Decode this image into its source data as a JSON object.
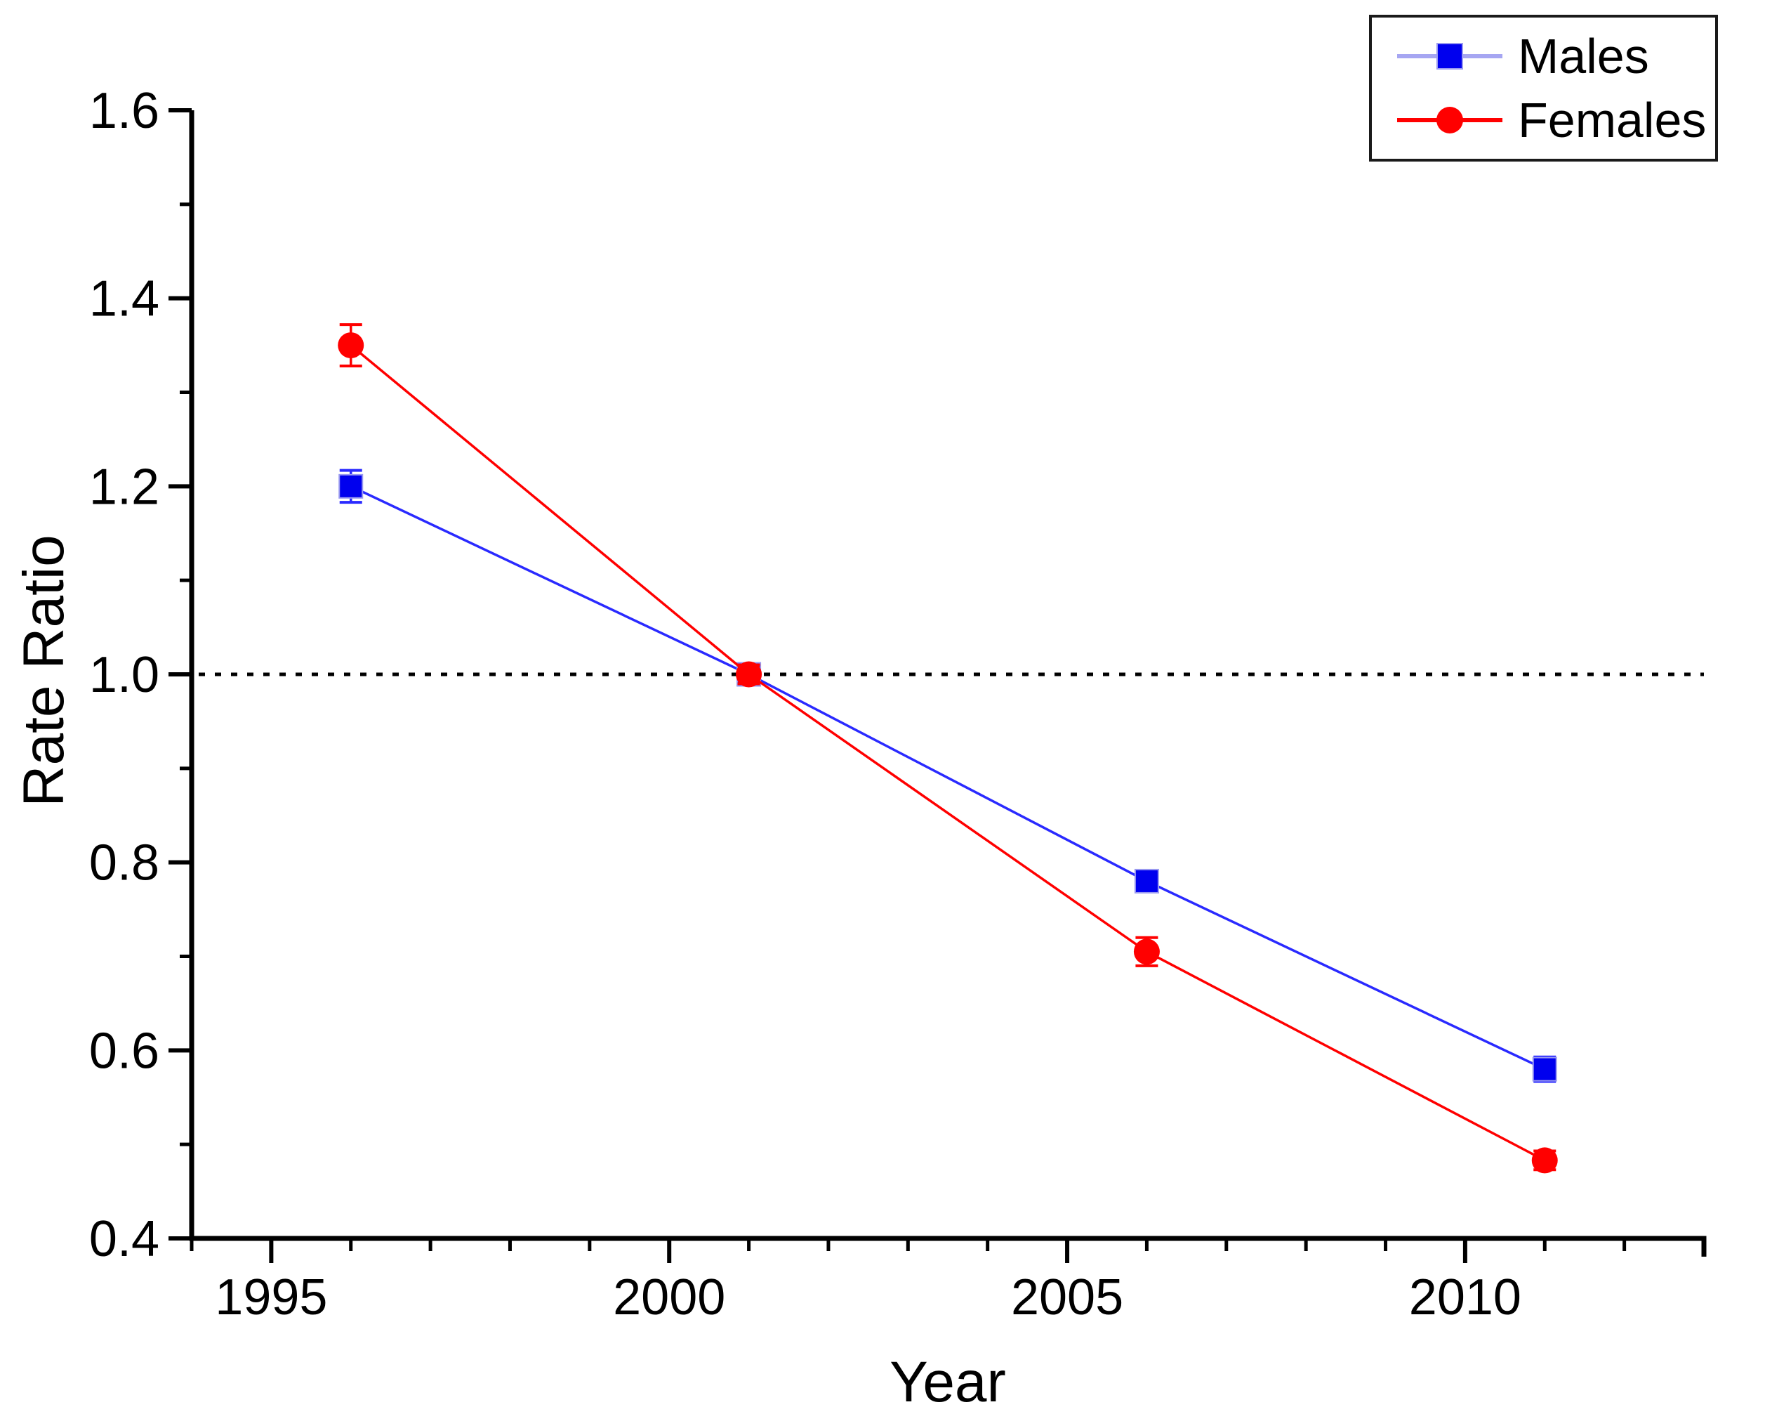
{
  "chart_data": {
    "type": "line",
    "title": "",
    "xlabel": "Year",
    "ylabel": "Rate Ratio",
    "xlim": [
      1994,
      2013
    ],
    "ylim": [
      0.4,
      1.6
    ],
    "x_major_ticks": [
      1995,
      2000,
      2005,
      2010
    ],
    "x_tick_labels": [
      "1995",
      "2000",
      "2005",
      "2010"
    ],
    "x_minor_tick_interval": 1,
    "y_major_ticks": [
      0.4,
      0.6,
      0.8,
      1.0,
      1.2,
      1.4,
      1.6
    ],
    "y_tick_labels": [
      "0.4",
      "0.6",
      "0.8",
      "1.0",
      "1.2",
      "1.4",
      "1.6"
    ],
    "y_minor_tick_interval": 0.1,
    "grid": "off",
    "reference_line": {
      "y": 1.0,
      "style": "dotted",
      "color": "#000000"
    },
    "legend": {
      "position": "top-right",
      "border": "#1a1a1a"
    },
    "axis_color": "#000000",
    "series": [
      {
        "name": "Males",
        "marker": "square",
        "marker_color": "#0000ee",
        "marker_edge_color": "#9a9af0",
        "line_color": "#2a2aff",
        "legend_line_color": "#a6a6f2",
        "x": [
          1996,
          2001,
          2006,
          2011
        ],
        "y": [
          1.2,
          1.0,
          0.78,
          0.58
        ],
        "y_err": [
          0.017,
          0.008,
          0.01,
          0.013
        ]
      },
      {
        "name": "Females",
        "marker": "circle",
        "marker_color": "#ff0000",
        "marker_edge_color": "#ff0000",
        "line_color": "#ff0000",
        "legend_line_color": "#ff0000",
        "x": [
          1996,
          2001,
          2006,
          2011
        ],
        "y": [
          1.35,
          1.0,
          0.705,
          0.483
        ],
        "y_err": [
          0.022,
          0.01,
          0.015,
          0.01
        ]
      }
    ]
  }
}
